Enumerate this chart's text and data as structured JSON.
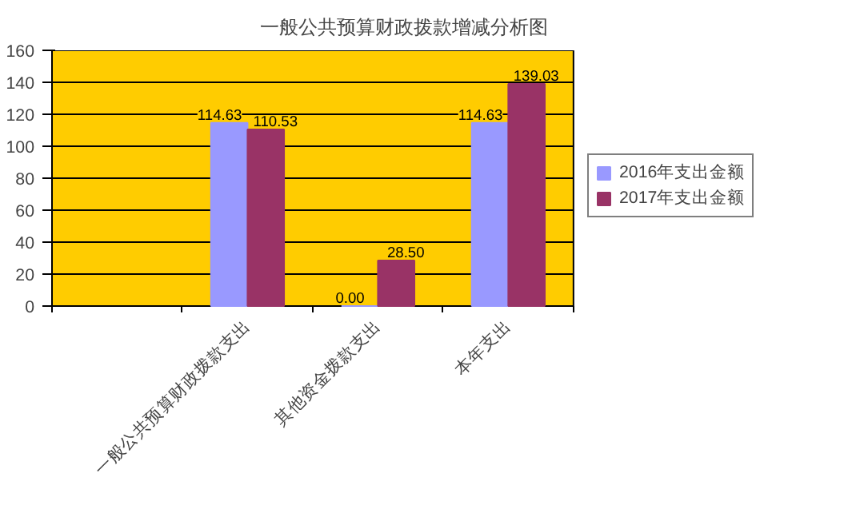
{
  "chart_data": {
    "type": "bar",
    "title": "一般公共预算财政拨款增减分析图",
    "categories": [
      null,
      "一般公共预算财政拨款支出",
      "其他资金拨款支出",
      "本年支出"
    ],
    "series": [
      {
        "name": "2016年支出金额",
        "color": "#9999ff",
        "values": [
          null,
          114.63,
          0,
          114.63
        ],
        "value_labels": [
          null,
          "114.63",
          "0.00",
          "114.63"
        ]
      },
      {
        "name": "2017年支出金额",
        "color": "#993366",
        "values": [
          null,
          110.53,
          28.5,
          139.03
        ],
        "value_labels": [
          null,
          "110.53",
          "28.50",
          "139.03"
        ]
      }
    ],
    "ylim": [
      0,
      160
    ],
    "yticks": [
      0,
      20,
      40,
      60,
      80,
      100,
      120,
      140,
      160
    ],
    "grid": "y",
    "legend": "right"
  }
}
